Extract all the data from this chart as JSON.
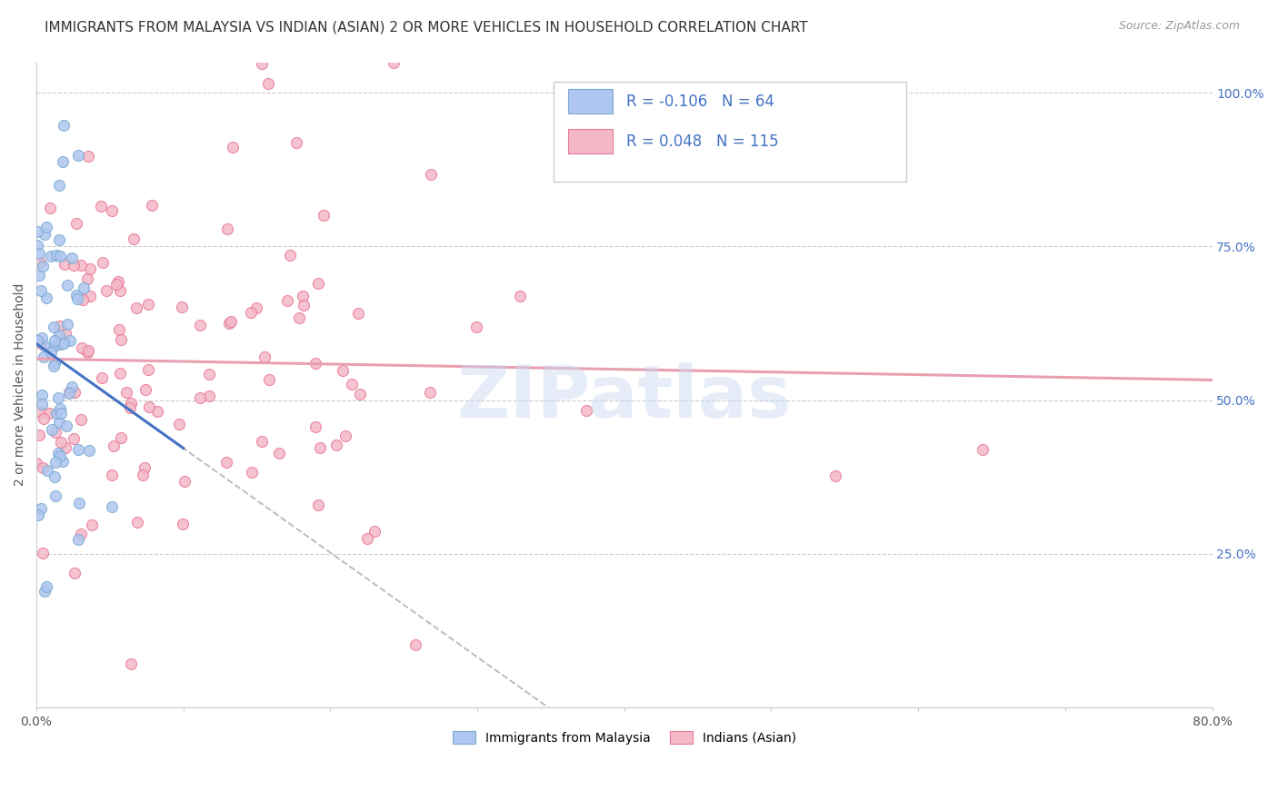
{
  "title": "IMMIGRANTS FROM MALAYSIA VS INDIAN (ASIAN) 2 OR MORE VEHICLES IN HOUSEHOLD CORRELATION CHART",
  "source": "Source: ZipAtlas.com",
  "ylabel": "2 or more Vehicles in Household",
  "watermark": "ZIPatlas",
  "right_yticks": [
    "100.0%",
    "75.0%",
    "50.0%",
    "25.0%"
  ],
  "right_ytick_vals": [
    1.0,
    0.75,
    0.5,
    0.25
  ],
  "right_color": "#4472c4",
  "xmin": 0.0,
  "xmax": 0.8,
  "ymin": 0.0,
  "ymax": 1.05,
  "malaysia_color": "#aec6f0",
  "malaysia_edge": "#7aaad0",
  "indian_color": "#f4b8c8",
  "indian_edge": "#e87898",
  "malaysia_R": -0.106,
  "malaysia_N": 64,
  "indian_R": 0.048,
  "indian_N": 115,
  "malaysia_trend_color": "#4472c4",
  "indian_trend_color": "#e8a0b0",
  "dash_color": "#bbbbbb",
  "background": "#ffffff",
  "grid_color": "#cccccc",
  "title_fontsize": 11,
  "source_fontsize": 9,
  "ylabel_fontsize": 10,
  "marker_size": 75,
  "seed": 12345
}
